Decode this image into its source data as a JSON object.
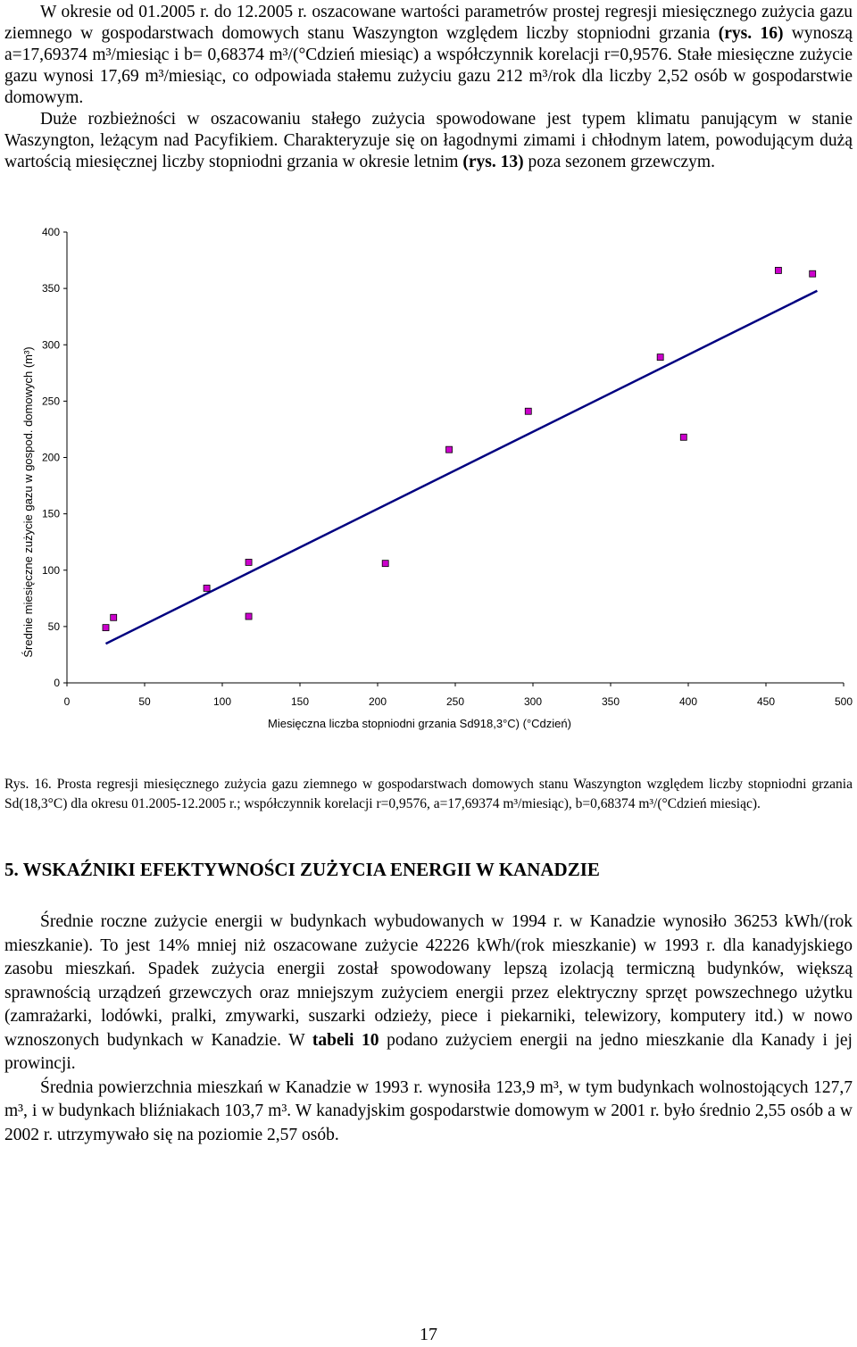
{
  "intro": {
    "p1_a": "W okresie od 01.2005 r. do 12.2005 r. oszacowane wartości parametrów prostej regresji miesięcznego zużycia gazu ziemnego w gospodarstwach domowych stanu Waszyngton względem liczby stopniodni grzania ",
    "p1_ref": "(rys. 16)",
    "p1_b": " wynoszą a=17,69374 m³/miesiąc i b= 0,68374 m³/(°Cdzień miesiąc) a współczynnik korelacji r=0,9576.",
    "p1_c": " Stałe miesięczne zużycie gazu wynosi 17,69 m³/miesiąc, co odpowiada stałemu zużyciu gazu 212 m³/rok dla liczby 2,52 osób w gospodarstwie domowym.",
    "p2_a": "Duże rozbieżności w oszacowaniu stałego zużycia spowodowane jest typem klimatu panującym w stanie Waszyngton, leżącym nad Pacyfikiem. Charakteryzuje się on łagodnymi zimami i chłodnym latem, powodującym dużą wartością miesięcznej liczby stopniodni grzania w okresie letnim ",
    "p2_ref": "(rys. 13)",
    "p2_b": " poza sezonem grzewczym."
  },
  "chart_data": {
    "type": "scatter",
    "title": "",
    "xlabel": "Miesięczna liczba stopniodni grzania Sd918,3°C) (°Cdzień)",
    "ylabel": "Średnie miesięczne zużycie gazu w gospod. domowych (m³)",
    "xlim": [
      0,
      500
    ],
    "ylim": [
      0,
      400
    ],
    "xticks": [
      0,
      50,
      100,
      150,
      200,
      250,
      300,
      350,
      400,
      450,
      500
    ],
    "yticks": [
      0,
      50,
      100,
      150,
      200,
      250,
      300,
      350,
      400
    ],
    "grid": false,
    "points": [
      {
        "x": 25,
        "y": 49
      },
      {
        "x": 30,
        "y": 58
      },
      {
        "x": 90,
        "y": 84
      },
      {
        "x": 117,
        "y": 59
      },
      {
        "x": 117,
        "y": 107
      },
      {
        "x": 205,
        "y": 106
      },
      {
        "x": 246,
        "y": 207
      },
      {
        "x": 297,
        "y": 241
      },
      {
        "x": 382,
        "y": 289
      },
      {
        "x": 397,
        "y": 218
      },
      {
        "x": 458,
        "y": 366
      },
      {
        "x": 480,
        "y": 363
      }
    ],
    "regression": {
      "a": 17.69374,
      "b": 0.68374,
      "x_from": 25,
      "x_to": 483
    },
    "marker_color": "#cc00cc",
    "line_color": "#000080"
  },
  "caption": "Rys. 16. Prosta regresji miesięcznego zużycia gazu ziemnego w gospodarstwach domowych stanu Waszyngton względem liczby stopniodni grzania Sd(18,3°C) dla okresu 01.2005-12.2005 r.; współczynnik korelacji r=0,9576, a=17,69374 m³/miesiąc), b=0,68374 m³/(°Cdzień miesiąc).",
  "section_heading": "5. WSKAŹNIKI EFEKTYWNOŚCI ZUŻYCIA ENERGII W KANADZIE",
  "body": {
    "p3": "Średnie roczne zużycie energii w budynkach wybudowanych w 1994 r. w Kanadzie wynosiło 36253 kWh/(rok mieszkanie). To jest 14% mniej niż oszacowane zużycie 42226 kWh/(rok mieszkanie) w 1993 r. dla kanadyjskiego zasobu mieszkań. Spadek zużycia energii został spowodowany lepszą izolacją termiczną budynków, większą sprawnością urządzeń grzewczych oraz mniejszym zużyciem energii przez elektryczny sprzęt powszechnego użytku (zamrażarki, lodówki, pralki, zmywarki, suszarki odzieży, piece i piekarniki, telewizory, komputery itd.) w nowo wznoszonych budynkach w Kanadzie. W ",
    "p3_ref": "tabeli 10",
    "p3_end": " podano zużyciem energii na jedno mieszkanie dla Kanady i jej prowincji.",
    "p4": "Średnia powierzchnia mieszkań w Kanadzie w 1993 r. wynosiła 123,9 m³, w tym budynkach wolnostojących 127,7 m³, i w budynkach bliźniakach 103,7 m³. W kanadyjskim gospodarstwie domowym w 2001 r. było średnio 2,55 osób a w 2002 r. utrzymywało się na poziomie 2,57 osób."
  },
  "page_number": "17"
}
